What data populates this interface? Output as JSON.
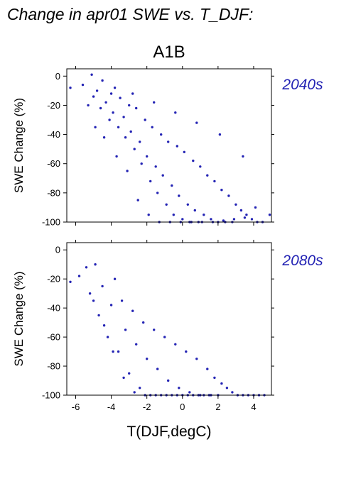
{
  "figure": {
    "title": "Change in apr01 SWE vs. T_DJF:",
    "scenario": "A1B",
    "xlabel": "T(DJF,degC)",
    "point_color": "#2323b4"
  },
  "chart_data": [
    {
      "type": "scatter",
      "period_label": "2040s",
      "xlabel": "",
      "ylabel": "SWE Change (%)",
      "xlim": [
        -6.5,
        5
      ],
      "ylim": [
        -100,
        5
      ],
      "xticks": [
        -6,
        -4,
        -2,
        0,
        2,
        4
      ],
      "yticks": [
        0,
        -20,
        -40,
        -60,
        -80,
        -100
      ],
      "grid": false,
      "series": [
        {
          "values_note": "",
          "x": [
            -6.3,
            -5.6,
            -5.1,
            -5.0,
            -4.8,
            -4.6,
            -4.5,
            -4.3,
            -4.1,
            -4.0,
            -3.9,
            -3.8,
            -3.6,
            -3.5,
            -3.3,
            -3.2,
            -3.0,
            -2.9,
            -2.7,
            -2.6,
            -2.4,
            -2.3,
            -2.1,
            -2.0,
            -1.8,
            -1.7,
            -1.5,
            -1.4,
            -1.2,
            -1.1,
            -0.9,
            -0.8,
            -0.6,
            -0.5,
            -0.3,
            -0.2,
            0.0,
            0.1,
            0.3,
            0.4,
            0.6,
            0.7,
            0.9,
            1.0,
            1.2,
            1.4,
            1.6,
            1.8,
            2.0,
            2.2,
            2.4,
            2.6,
            2.8,
            3.0,
            3.3,
            3.6,
            3.9,
            4.2,
            4.5,
            4.9,
            -5.3,
            -4.9,
            -4.4,
            -3.7,
            -3.1,
            -2.5,
            -1.9,
            -1.3,
            -0.7,
            -0.1,
            0.5,
            1.1,
            1.7,
            2.3,
            2.9,
            3.5,
            4.1,
            -2.8,
            -1.6,
            -0.4,
            0.8,
            2.1,
            3.4
          ],
          "y": [
            -8,
            -6,
            1,
            -14,
            -10,
            -22,
            -3,
            -18,
            -30,
            -12,
            -25,
            -8,
            -35,
            -15,
            -28,
            -42,
            -20,
            -38,
            -50,
            -22,
            -45,
            -60,
            -30,
            -55,
            -72,
            -35,
            -62,
            -80,
            -40,
            -68,
            -88,
            -45,
            -75,
            -95,
            -48,
            -82,
            -98,
            -52,
            -88,
            -100,
            -58,
            -92,
            -100,
            -62,
            -95,
            -68,
            -98,
            -72,
            -100,
            -78,
            -100,
            -82,
            -100,
            -88,
            -92,
            -95,
            -98,
            -100,
            -100,
            -95,
            -20,
            -35,
            -42,
            -55,
            -65,
            -85,
            -95,
            -100,
            -100,
            -100,
            -100,
            -100,
            -100,
            -99,
            -98,
            -97,
            -90,
            -12,
            -18,
            -25,
            -32,
            -40,
            -55
          ]
        }
      ]
    },
    {
      "type": "scatter",
      "period_label": "2080s",
      "xlabel": "T(DJF,degC)",
      "ylabel": "SWE Change (%)",
      "xlim": [
        -6.5,
        5
      ],
      "ylim": [
        -100,
        5
      ],
      "xticks": [
        -6,
        -4,
        -2,
        0,
        2,
        4
      ],
      "yticks": [
        0,
        -20,
        -40,
        -60,
        -80,
        -100
      ],
      "grid": false,
      "series": [
        {
          "values_note": "",
          "x": [
            -6.3,
            -5.8,
            -5.4,
            -5.2,
            -4.9,
            -4.7,
            -4.5,
            -4.2,
            -4.0,
            -3.8,
            -3.6,
            -3.4,
            -3.2,
            -3.0,
            -2.8,
            -2.6,
            -2.4,
            -2.2,
            -2.0,
            -1.8,
            -1.6,
            -1.4,
            -1.2,
            -1.0,
            -0.8,
            -0.6,
            -0.4,
            -0.2,
            0.0,
            0.2,
            0.4,
            0.6,
            0.8,
            1.0,
            1.2,
            1.4,
            1.6,
            1.8,
            2.0,
            2.2,
            2.5,
            2.8,
            3.1,
            3.4,
            3.7,
            4.0,
            4.3,
            4.6,
            -5.0,
            -4.4,
            -3.9,
            -3.3,
            -2.7,
            -2.1,
            -1.5,
            -0.9,
            -0.3,
            0.3,
            0.9,
            1.5
          ],
          "y": [
            -22,
            -18,
            -12,
            -30,
            -10,
            -45,
            -25,
            -60,
            -38,
            -20,
            -70,
            -35,
            -55,
            -85,
            -42,
            -65,
            -95,
            -50,
            -75,
            -100,
            -55,
            -82,
            -100,
            -60,
            -90,
            -100,
            -65,
            -95,
            -100,
            -70,
            -98,
            -100,
            -75,
            -100,
            -100,
            -82,
            -100,
            -88,
            -100,
            -92,
            -95,
            -98,
            -100,
            -100,
            -100,
            -100,
            -100,
            -100,
            -35,
            -52,
            -70,
            -88,
            -98,
            -100,
            -100,
            -100,
            -100,
            -100,
            -100,
            -100
          ]
        }
      ]
    }
  ]
}
